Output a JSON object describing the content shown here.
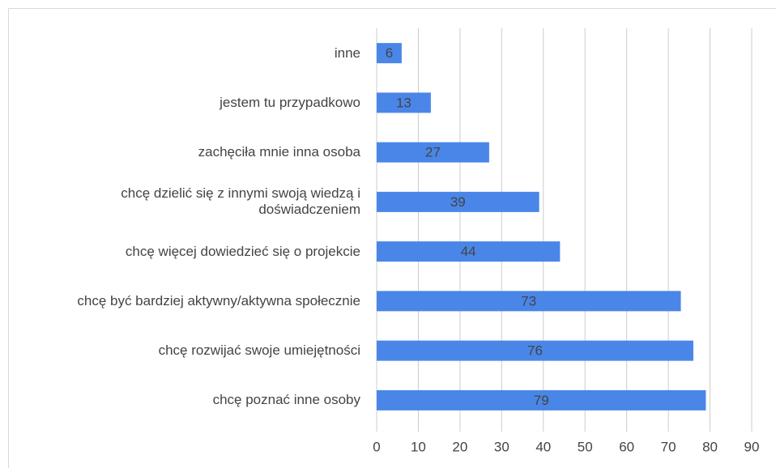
{
  "chart_data": {
    "type": "bar",
    "orientation": "horizontal",
    "categories": [
      "inne",
      "jestem tu przypadkowo",
      "zachęciła mnie inna osoba",
      "chcę dzielić się z innymi swoją wiedzą i doświadczeniem",
      "chcę więcej dowiedzieć się o projekcie",
      "chcę być bardziej aktywny/aktywna społecznie",
      "chcę rozwijać swoje umiejętności",
      "chcę poznać inne osoby"
    ],
    "values": [
      6,
      13,
      27,
      39,
      44,
      73,
      76,
      79
    ],
    "color": "#4a86e8",
    "xlim": [
      0,
      90
    ],
    "xticks": [
      0,
      10,
      20,
      30,
      40,
      50,
      60,
      70,
      80,
      90
    ],
    "grid": true
  }
}
